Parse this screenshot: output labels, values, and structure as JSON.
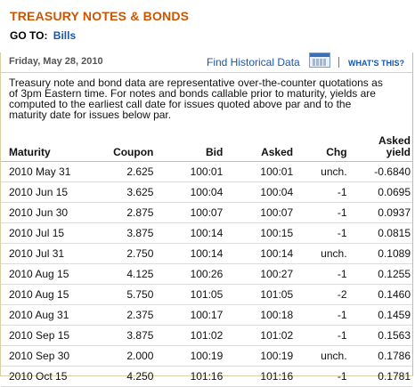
{
  "header": {
    "title": "TREASURY NOTES & BONDS",
    "goto_label": "GO TO:",
    "goto_link": "Bills"
  },
  "toolbar": {
    "date": "Friday, May 28, 2010",
    "historical_link": "Find Historical Data",
    "calendar_icon": "calendar-icon",
    "whats_this": "WHAT'S THIS?"
  },
  "description": "Treasury note and bond data are representative over-the-counter quotations as of 3pm Eastern time. For notes and bonds callable prior to maturity, yields are computed to the earliest call date for issues quoted above par and to the maturity date for issues below par.",
  "table": {
    "columns": {
      "maturity": "Maturity",
      "coupon": "Coupon",
      "bid": "Bid",
      "asked": "Asked",
      "chg": "Chg",
      "yield_line1": "Asked",
      "yield_line2": "yield"
    },
    "rows": [
      {
        "maturity": "2010 May 31",
        "coupon": "2.625",
        "bid": "100:01",
        "asked": "100:01",
        "chg": "unch.",
        "yield": "-0.6840"
      },
      {
        "maturity": "2010 Jun 15",
        "coupon": "3.625",
        "bid": "100:04",
        "asked": "100:04",
        "chg": "-1",
        "yield": "0.0695"
      },
      {
        "maturity": "2010 Jun 30",
        "coupon": "2.875",
        "bid": "100:07",
        "asked": "100:07",
        "chg": "-1",
        "yield": "0.0937"
      },
      {
        "maturity": "2010 Jul 15",
        "coupon": "3.875",
        "bid": "100:14",
        "asked": "100:15",
        "chg": "-1",
        "yield": "0.0815"
      },
      {
        "maturity": "2010 Jul 31",
        "coupon": "2.750",
        "bid": "100:14",
        "asked": "100:14",
        "chg": "unch.",
        "yield": "0.1089"
      },
      {
        "maturity": "2010 Aug 15",
        "coupon": "4.125",
        "bid": "100:26",
        "asked": "100:27",
        "chg": "-1",
        "yield": "0.1255"
      },
      {
        "maturity": "2010 Aug 15",
        "coupon": "5.750",
        "bid": "101:05",
        "asked": "101:05",
        "chg": "-2",
        "yield": "0.1460"
      },
      {
        "maturity": "2010 Aug 31",
        "coupon": "2.375",
        "bid": "100:17",
        "asked": "100:18",
        "chg": "-1",
        "yield": "0.1459"
      },
      {
        "maturity": "2010 Sep 15",
        "coupon": "3.875",
        "bid": "101:02",
        "asked": "101:02",
        "chg": "-1",
        "yield": "0.1563"
      },
      {
        "maturity": "2010 Sep 30",
        "coupon": "2.000",
        "bid": "100:19",
        "asked": "100:19",
        "chg": "unch.",
        "yield": "0.1786"
      },
      {
        "maturity": "2010 Oct 15",
        "coupon": "4.250",
        "bid": "101:16",
        "asked": "101:16",
        "chg": "-1",
        "yield": "0.1781"
      }
    ]
  },
  "colors": {
    "title": "#cc5500",
    "link": "#1a56a8",
    "negative": "#e41c1c"
  }
}
